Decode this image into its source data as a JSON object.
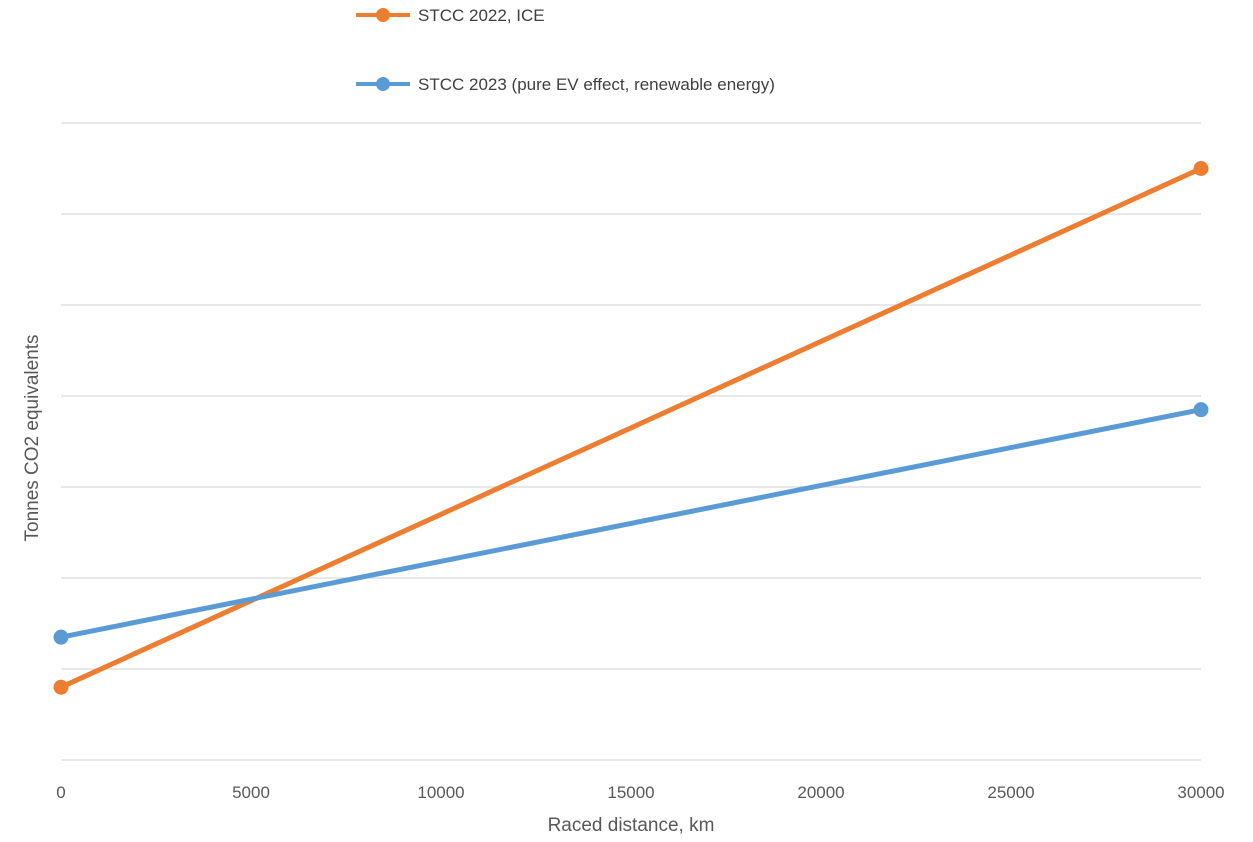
{
  "chart_data": {
    "type": "line",
    "xlabel": "Raced distance, km",
    "ylabel": "Tonnes CO2 equivalents",
    "x_ticks": [
      "0",
      "5000",
      "10000",
      "15000",
      "20000",
      "25000",
      "30000"
    ],
    "xlim": [
      0,
      30000
    ],
    "ylim": [
      0,
      7
    ],
    "y_gridlines": 7,
    "y_tick_labels_shown": false,
    "grid": true,
    "legend_position": "top",
    "series": [
      {
        "name": "STCC 2022, ICE",
        "color": "#ed7d31",
        "x": [
          0,
          30000
        ],
        "y": [
          0.8,
          6.5
        ]
      },
      {
        "name": "STCC 2023 (pure EV effect, renewable energy)",
        "color": "#5b9bd5",
        "x": [
          0,
          30000
        ],
        "y": [
          1.35,
          3.85
        ]
      }
    ]
  }
}
